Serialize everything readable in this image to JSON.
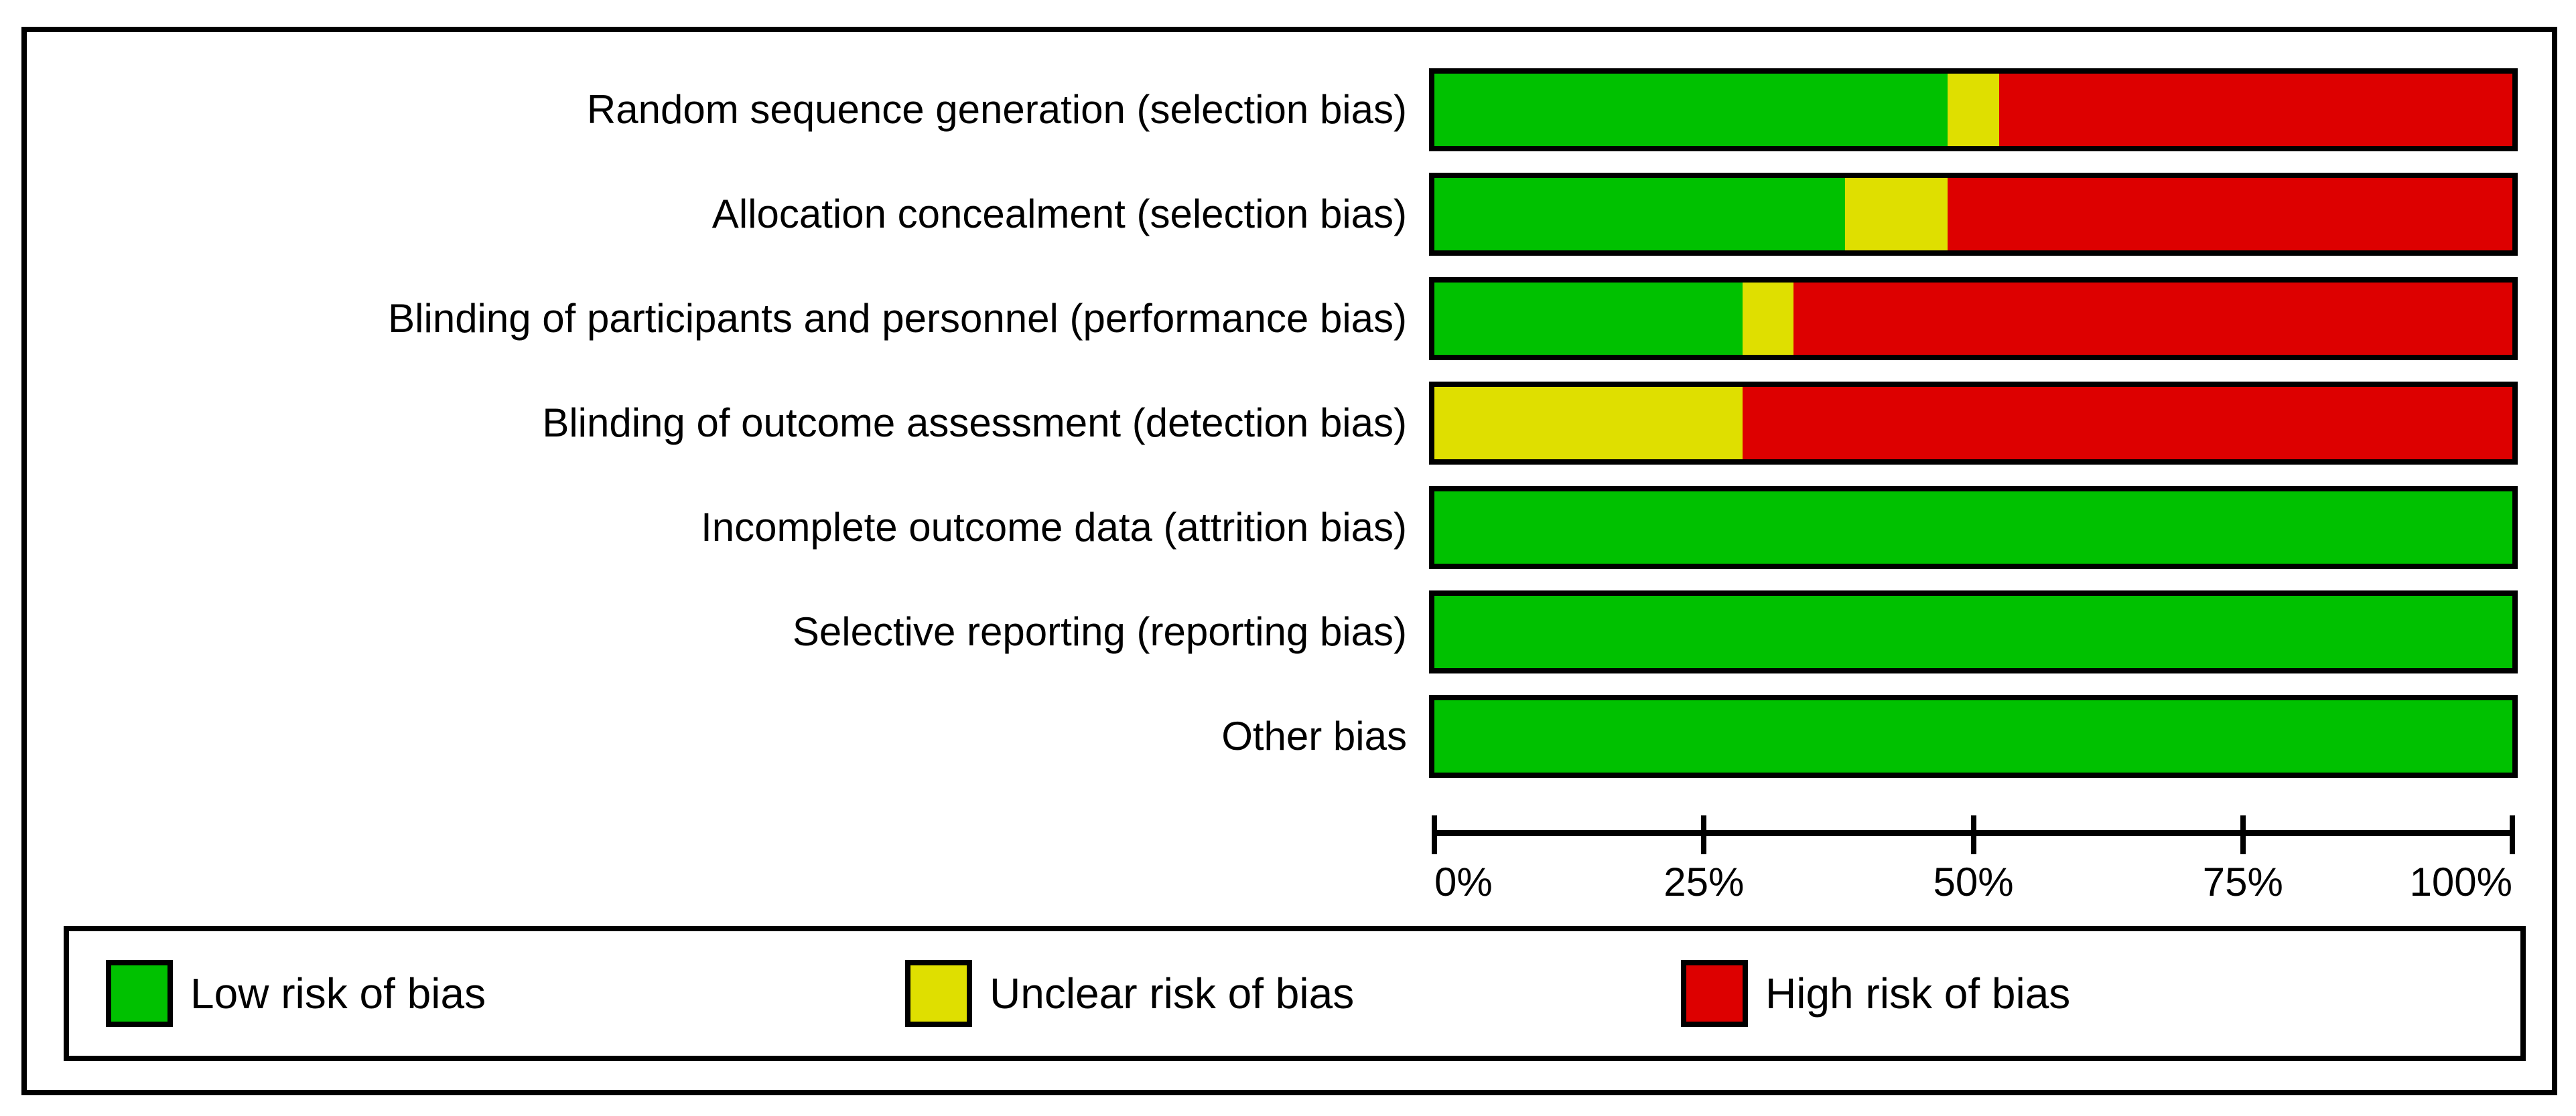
{
  "chart_data": {
    "type": "bar",
    "variant": "horizontal-stacked-100-percent",
    "categories": [
      "Random sequence generation (selection bias)",
      "Allocation concealment (selection bias)",
      "Blinding of participants and personnel (performance bias)",
      "Blinding of outcome assessment (detection bias)",
      "Incomplete outcome data (attrition bias)",
      "Selective reporting (reporting bias)",
      "Other bias"
    ],
    "series": [
      {
        "name": "Low risk of bias",
        "color": "#00C100",
        "values": [
          47.62,
          38.1,
          28.57,
          0.0,
          100.0,
          100.0,
          100.0
        ]
      },
      {
        "name": "Unclear risk of bias",
        "color": "#DFDF00",
        "values": [
          4.76,
          9.52,
          4.76,
          28.57,
          0.0,
          0.0,
          0.0
        ]
      },
      {
        "name": "High risk of bias",
        "color": "#DD0000",
        "values": [
          47.62,
          52.38,
          66.67,
          71.43,
          0.0,
          0.0,
          0.0
        ]
      }
    ],
    "xlim": [
      0,
      100
    ],
    "x_tick_labels": [
      "0%",
      "25%",
      "50%",
      "75%",
      "100%"
    ],
    "grid": false,
    "legend_position": "bottom"
  },
  "legend": {
    "items": [
      {
        "label": "Low risk of bias",
        "color": "#00C100"
      },
      {
        "label": "Unclear risk of bias",
        "color": "#DFDF00"
      },
      {
        "label": "High risk of bias",
        "color": "#DD0000"
      }
    ]
  },
  "colors": {
    "low_risk": "#00C100",
    "unclear_risk": "#DFDF00",
    "high_risk": "#DD0000",
    "frame": "#000000",
    "background": "#FFFFFF"
  }
}
